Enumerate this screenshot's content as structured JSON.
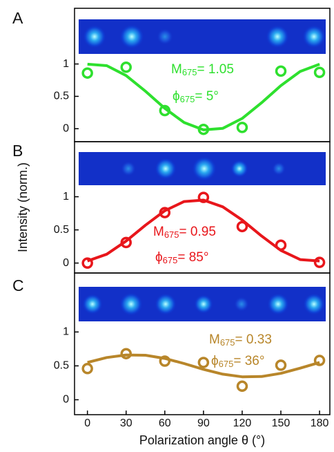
{
  "chart_data": [
    {
      "type": "line",
      "panel_label": "A",
      "xlim": [
        -10,
        188
      ],
      "ylim": [
        -0.2,
        1.86
      ],
      "yticks": [
        0,
        0.5,
        1
      ],
      "annotations": [
        [
          "M",
          "675",
          "= 1.05"
        ],
        [
          "ϕ",
          "675",
          "= 5°"
        ]
      ],
      "series": [
        {
          "type": "scatter",
          "color": "#2ee02e",
          "x": [
            0,
            30,
            60,
            90,
            120,
            150,
            180
          ],
          "values": [
            0.86,
            0.95,
            0.28,
            -0.01,
            0.02,
            0.89,
            0.87
          ]
        },
        {
          "type": "line",
          "color": "#2ee02e",
          "x": [
            0,
            15,
            30,
            45,
            60,
            75,
            90,
            105,
            120,
            135,
            150,
            165,
            180
          ],
          "values": [
            0.997,
            0.974,
            0.821,
            0.579,
            0.314,
            0.096,
            -0.017,
            0.006,
            0.159,
            0.401,
            0.666,
            0.884,
            0.997
          ]
        }
      ]
    },
    {
      "type": "line",
      "panel_label": "B",
      "xlim": [
        -10,
        188
      ],
      "ylim": [
        -0.15,
        1.83
      ],
      "yticks": [
        0,
        0.5,
        1
      ],
      "ylabel": "Intensity (norm.)",
      "annotations": [
        [
          "M",
          "675",
          "= 0.95"
        ],
        [
          "ϕ",
          "675",
          "= 85°"
        ]
      ],
      "series": [
        {
          "type": "scatter",
          "color": "#e8161b",
          "x": [
            0,
            30,
            60,
            90,
            120,
            150,
            180
          ],
          "values": [
            0,
            0.31,
            0.76,
            0.99,
            0.55,
            0.27,
            0.01
          ]
        },
        {
          "type": "line",
          "color": "#e8161b",
          "x": [
            0,
            15,
            30,
            45,
            60,
            75,
            90,
            105,
            120,
            135,
            150,
            165,
            180
          ],
          "values": [
            0.031,
            0.133,
            0.331,
            0.571,
            0.789,
            0.928,
            0.949,
            0.847,
            0.649,
            0.409,
            0.191,
            0.052,
            0.031
          ]
        }
      ]
    },
    {
      "type": "line",
      "panel_label": "C",
      "xlim": [
        -10,
        188
      ],
      "ylim": [
        -0.22,
        1.87
      ],
      "yticks": [
        0,
        0.5,
        1
      ],
      "xticks": [
        0,
        30,
        60,
        90,
        120,
        150,
        180
      ],
      "xlabel": "Polarization angle θ (°)",
      "annotations": [
        [
          "M",
          "675",
          "= 0.33"
        ],
        [
          "ϕ",
          "675",
          "= 36°"
        ]
      ],
      "series": [
        {
          "type": "scatter",
          "color": "#b8862a",
          "x": [
            0,
            30,
            60,
            90,
            120,
            150,
            180
          ],
          "values": [
            0.46,
            0.68,
            0.57,
            0.55,
            0.2,
            0.51,
            0.58
          ]
        },
        {
          "type": "line",
          "color": "#b8862a",
          "x": [
            0,
            15,
            30,
            45,
            60,
            75,
            90,
            105,
            120,
            135,
            150,
            165,
            180
          ],
          "values": [
            0.551,
            0.623,
            0.661,
            0.657,
            0.61,
            0.534,
            0.449,
            0.377,
            0.339,
            0.343,
            0.39,
            0.466,
            0.551
          ]
        }
      ]
    }
  ]
}
